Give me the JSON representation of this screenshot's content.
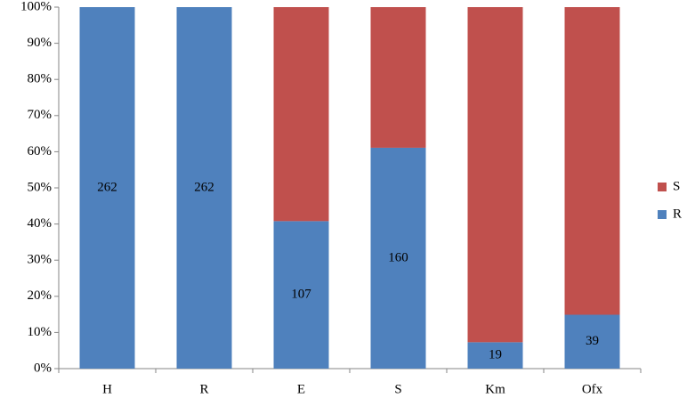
{
  "chart_data": {
    "type": "stacked_percent_bar",
    "categories": [
      "H",
      "R",
      "E",
      "S",
      "Km",
      "Ofx"
    ],
    "series": [
      {
        "name": "R",
        "color": "#4f81bd",
        "values": [
          100,
          100,
          40.8,
          61.1,
          7.3,
          14.9
        ],
        "value_labels": [
          "262",
          "262",
          "107",
          "160",
          "19",
          "39"
        ]
      },
      {
        "name": "S",
        "color": "#c0504d",
        "values": [
          0,
          0,
          59.2,
          38.9,
          92.7,
          85.1
        ]
      }
    ],
    "ylim": [
      0,
      100
    ],
    "yticks": [
      {
        "value": 0,
        "label": "0%"
      },
      {
        "value": 10,
        "label": "10%"
      },
      {
        "value": 20,
        "label": "20%"
      },
      {
        "value": 30,
        "label": "30%"
      },
      {
        "value": 40,
        "label": "40%"
      },
      {
        "value": 50,
        "label": "50%"
      },
      {
        "value": 60,
        "label": "60%"
      },
      {
        "value": 70,
        "label": "70%"
      },
      {
        "value": 80,
        "label": "80%"
      },
      {
        "value": 90,
        "label": "90%"
      },
      {
        "value": 100,
        "label": "100%"
      }
    ],
    "grid": false,
    "legend": "right"
  }
}
